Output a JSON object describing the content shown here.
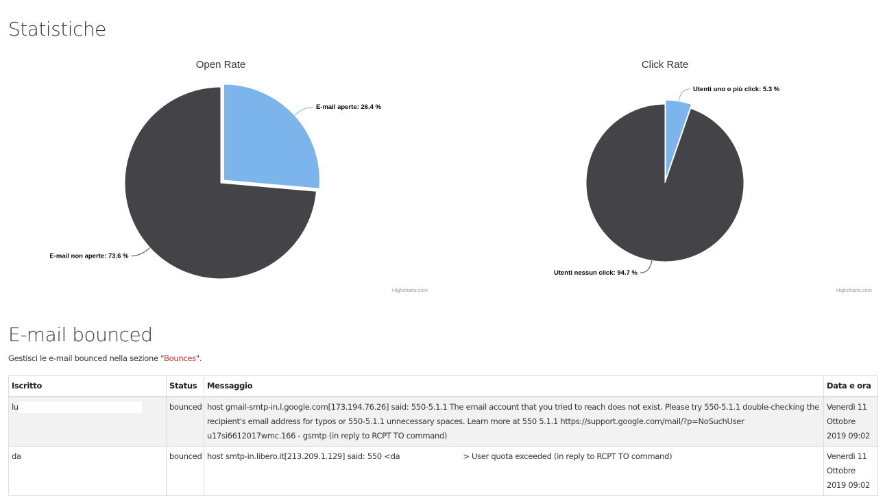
{
  "page": {
    "stats_title": "Statistiche",
    "bounce_title": "E-mail bounced",
    "hint_prefix": "Gestisci le e-mail bounced nella sezione \"",
    "hint_link": "Bounces",
    "hint_suffix": "\"."
  },
  "chart_data": [
    {
      "type": "pie",
      "title": "Open Rate",
      "credit": "Highcharts.com",
      "slices": [
        {
          "label": "E-mail aperte",
          "value": 26.4,
          "display": "E-mail aperte: 26.4 %",
          "color": "#7cb5ec",
          "sliced": true
        },
        {
          "label": "E-mail non aperte",
          "value": 73.6,
          "display": "E-mail non aperte: 73.6 %",
          "color": "#434348",
          "sliced": false
        }
      ]
    },
    {
      "type": "pie",
      "title": "Click Rate",
      "credit": "Highcharts.com",
      "slices": [
        {
          "label": "Utenti uno o più click",
          "value": 5.3,
          "display": "Utenti uno o più click: 5.3 %",
          "color": "#7cb5ec",
          "sliced": true
        },
        {
          "label": "Utenti nessun click",
          "value": 94.7,
          "display": "Utenti nessun click: 94.7 %",
          "color": "#434348",
          "sliced": false
        }
      ]
    }
  ],
  "table": {
    "headers": [
      "Iscritto",
      "Status",
      "Messaggio",
      "Data e ora"
    ],
    "rows": [
      {
        "iscritto": "lu",
        "status": "bounced",
        "messaggio": "host gmail-smtp-in.l.google.com[173.194.76.26] said: 550-5.1.1 The email account that you tried to reach does not exist. Please try 550-5.1.1 double-checking the recipient's email address for typos or 550-5.1.1 unnecessary spaces. Learn more at 550 5.1.1 https://support.google.com/mail/?p=NoSuchUser u17si6612017wmc.166 - gsmtp (in reply to RCPT TO command)",
        "messaggio_tail": "",
        "data": "Venerdì 11 Ottobre 2019 09:02"
      },
      {
        "iscritto": "da",
        "status": "bounced",
        "messaggio": "host smtp-in.libero.it[213.209.1.129] said: 550 <da",
        "messaggio_tail": "> User quota exceeded (in reply to RCPT TO command)",
        "data": "Venerdì 11 Ottobre 2019 09:02"
      }
    ]
  },
  "colors": {
    "accent_link": "#c0392b",
    "slice_light": "#7cb5ec",
    "slice_dark": "#434348"
  }
}
